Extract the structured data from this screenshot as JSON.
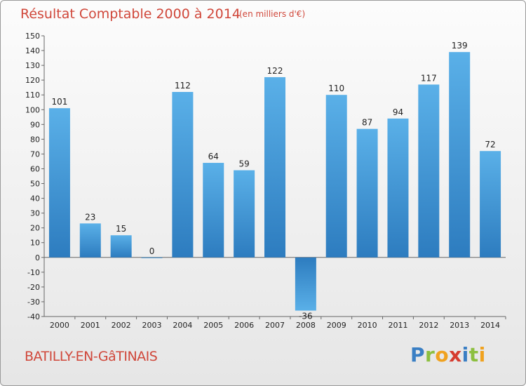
{
  "header": {
    "title": "Résultat Comptable 2000 à 2014",
    "subtitle": "(en milliers d'€)"
  },
  "footer": {
    "commune": "BATILLY-EN-GâTINAIS",
    "brand_letters": [
      {
        "ch": "P",
        "color": "#3a7fc4"
      },
      {
        "ch": "r",
        "color": "#8cbf3f"
      },
      {
        "ch": "o",
        "color": "#f0a21f"
      },
      {
        "ch": "x",
        "color": "#d63b2f"
      },
      {
        "ch": "i",
        "color": "#3a7fc4"
      },
      {
        "ch": "t",
        "color": "#8cbf3f"
      },
      {
        "ch": "i",
        "color": "#f0a21f"
      }
    ]
  },
  "chart_data": {
    "type": "bar",
    "title": "Résultat Comptable 2000 à 2014",
    "subtitle": "(en milliers d'€)",
    "categories": [
      "2000",
      "2001",
      "2002",
      "2003",
      "2004",
      "2005",
      "2006",
      "2007",
      "2008",
      "2009",
      "2010",
      "2011",
      "2012",
      "2013",
      "2014"
    ],
    "values": [
      101,
      23,
      15,
      0,
      112,
      64,
      59,
      122,
      -36,
      110,
      87,
      94,
      117,
      139,
      72
    ],
    "ylim": [
      -40,
      150
    ],
    "yticks": [
      -40,
      -30,
      -20,
      -10,
      0,
      10,
      20,
      30,
      40,
      50,
      60,
      70,
      80,
      90,
      100,
      110,
      120,
      130,
      140,
      150
    ],
    "grid": false,
    "bar_color_light": "#5ab0e8",
    "bar_color_dark": "#2d7cbf"
  }
}
